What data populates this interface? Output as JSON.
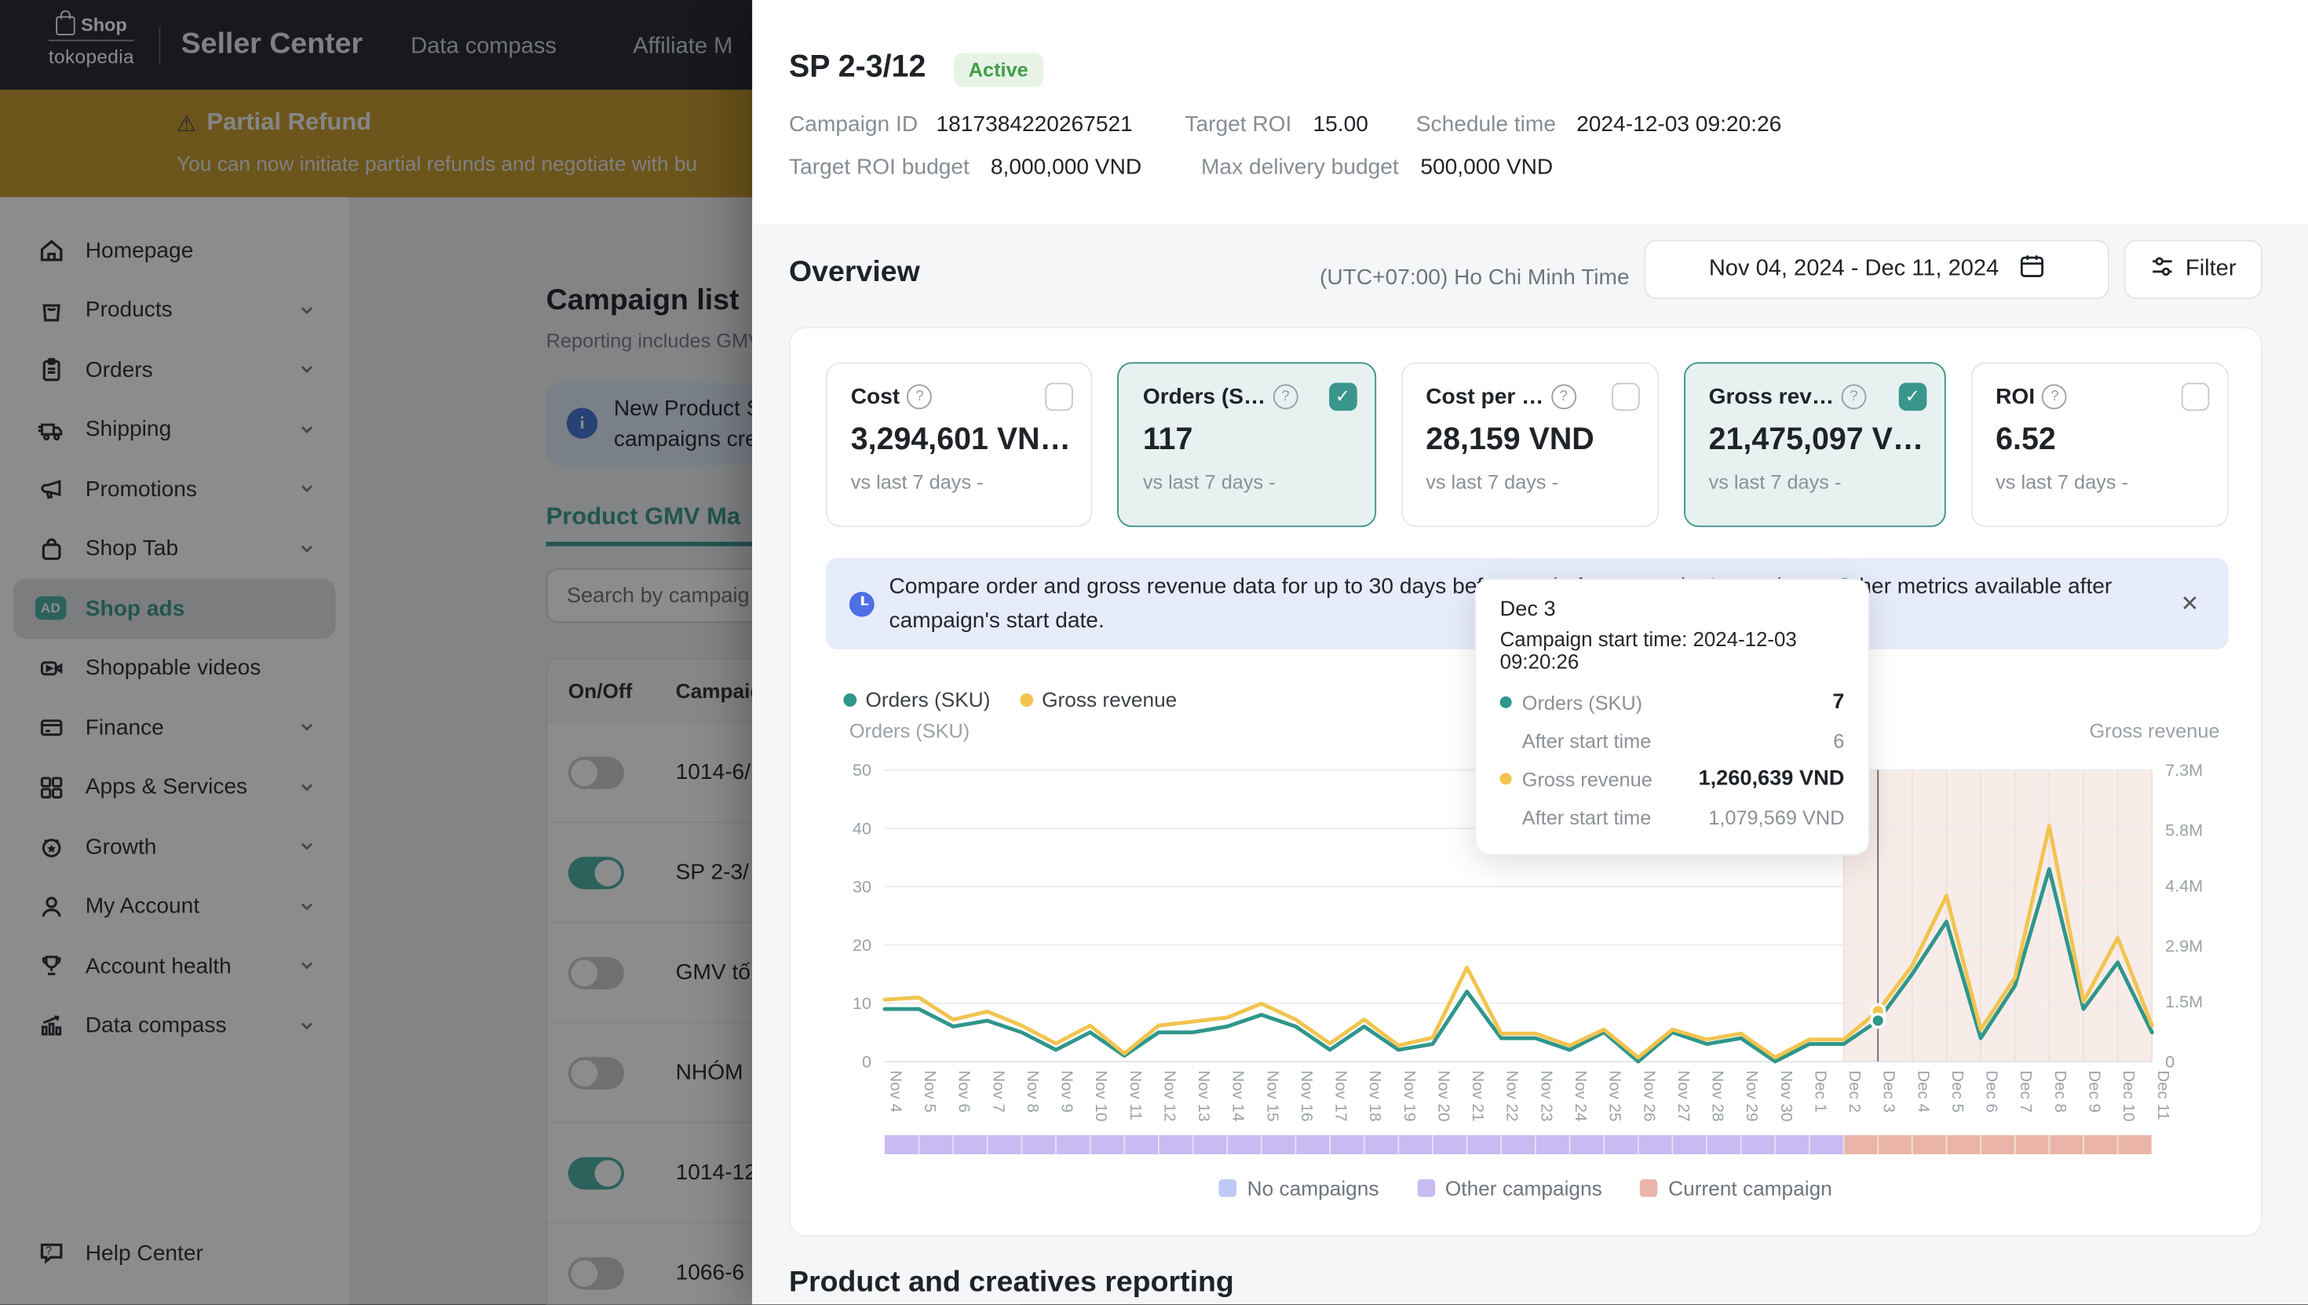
{
  "topnav": {
    "logo": {
      "line1": "Shop",
      "line2": "tokopedia"
    },
    "items": [
      "Seller Center",
      "Data compass",
      "Affiliate M"
    ]
  },
  "promo_banner": {
    "title": "Partial Refund",
    "body": "You can now initiate partial refunds and negotiate with bu"
  },
  "sidebar": {
    "items": [
      {
        "label": "Homepage",
        "icon": "home",
        "expandable": false,
        "active": false
      },
      {
        "label": "Products",
        "icon": "products",
        "expandable": true,
        "active": false
      },
      {
        "label": "Orders",
        "icon": "orders",
        "expandable": true,
        "active": false
      },
      {
        "label": "Shipping",
        "icon": "shipping",
        "expandable": true,
        "active": false
      },
      {
        "label": "Promotions",
        "icon": "promotions",
        "expandable": true,
        "active": false
      },
      {
        "label": "Shop Tab",
        "icon": "shop-tab",
        "expandable": true,
        "active": false
      },
      {
        "label": "Shop ads",
        "icon": "shop-ads",
        "expandable": false,
        "active": true
      },
      {
        "label": "Shoppable videos",
        "icon": "shoppable-videos",
        "expandable": false,
        "active": false
      },
      {
        "label": "Finance",
        "icon": "finance",
        "expandable": true,
        "active": false
      },
      {
        "label": "Apps & Services",
        "icon": "apps-services",
        "expandable": true,
        "active": false
      },
      {
        "label": "Growth",
        "icon": "growth",
        "expandable": true,
        "active": false
      },
      {
        "label": "My Account",
        "icon": "my-account",
        "expandable": true,
        "active": false
      },
      {
        "label": "Account health",
        "icon": "account-health",
        "expandable": true,
        "active": false
      },
      {
        "label": "Data compass",
        "icon": "data-compass",
        "expandable": true,
        "active": false
      }
    ],
    "help_center": "Help Center"
  },
  "campaign_list": {
    "title": "Campaign list",
    "subtitle": "Reporting includes GMV",
    "notice_line1": "New Product S",
    "notice_line2": "campaigns cre",
    "tab_label": "Product GMV Ma",
    "search_placeholder": "Search by campaig",
    "columns": {
      "on_off": "On/Off",
      "campaign": "Campaig"
    },
    "rows": [
      {
        "name": "1014-6/",
        "on": false
      },
      {
        "name": "SP 2-3/",
        "on": true
      },
      {
        "name": "GMV tố",
        "on": false
      },
      {
        "name": "NHÓM",
        "on": false
      },
      {
        "name": "1014-12",
        "on": true
      },
      {
        "name": "1066-6",
        "on": false
      }
    ]
  },
  "panel": {
    "title": "SP 2-3/12",
    "status_badge": "Active",
    "meta": [
      {
        "label": "Campaign ID",
        "value": "1817384220267521"
      },
      {
        "label": "Target ROI",
        "value": "15.00"
      },
      {
        "label": "Schedule time",
        "value": "2024-12-03 09:20:26"
      },
      {
        "label": "Target ROI budget",
        "value": "8,000,000 VND"
      },
      {
        "label": "Max delivery budget",
        "value": "500,000 VND"
      }
    ],
    "overview": {
      "title": "Overview",
      "timezone": "(UTC+07:00) Ho Chi Minh Time",
      "date_range": "Nov 04, 2024  -  Dec 11, 2024",
      "filter_label": "Filter"
    },
    "metrics": [
      {
        "label": "Cost",
        "value": "3,294,601 VN…",
        "compare": "vs last 7 days -",
        "selected": false
      },
      {
        "label": "Orders (S…",
        "value": "117",
        "compare": "vs last 7 days -",
        "selected": true
      },
      {
        "label": "Cost per …",
        "value": "28,159 VND",
        "compare": "vs last 7 days -",
        "selected": false
      },
      {
        "label": "Gross rev…",
        "value": "21,475,097 V…",
        "compare": "vs last 7 days -",
        "selected": true
      },
      {
        "label": "ROI",
        "value": "6.52",
        "compare": "vs last 7 days -",
        "selected": false
      }
    ],
    "notice": "Compare order and gross revenue data for up to 30 days before and after campaign's run dates. Other metrics available after campaign's start date.",
    "notice_close": "✕",
    "tooltip": {
      "title": "Dec 3",
      "subtitle": "Campaign start time: 2024-12-03 09:20:26",
      "rows": [
        {
          "dot": "#2f968b",
          "label": "Orders (SKU)",
          "value": "7",
          "strong": true,
          "indent": false
        },
        {
          "dot": "",
          "label": "After start time",
          "value": "6",
          "strong": false,
          "indent": true
        },
        {
          "dot": "#f2c44f",
          "label": "Gross revenue",
          "value": "1,260,639 VND",
          "strong": true,
          "indent": false
        },
        {
          "dot": "",
          "label": "After start time",
          "value": "1,079,569 VND",
          "strong": false,
          "indent": true
        }
      ]
    },
    "footer_title": "Product and creatives reporting"
  },
  "chart_data": {
    "type": "line",
    "title": "",
    "x": [
      "Nov 4",
      "Nov 5",
      "Nov 6",
      "Nov 7",
      "Nov 8",
      "Nov 9",
      "Nov 10",
      "Nov 11",
      "Nov 12",
      "Nov 13",
      "Nov 14",
      "Nov 15",
      "Nov 16",
      "Nov 17",
      "Nov 18",
      "Nov 19",
      "Nov 20",
      "Nov 21",
      "Nov 22",
      "Nov 23",
      "Nov 24",
      "Nov 25",
      "Nov 26",
      "Nov 27",
      "Nov 28",
      "Nov 29",
      "Nov 30",
      "Dec 1",
      "Dec 2",
      "Dec 3",
      "Dec 4",
      "Dec 5",
      "Dec 6",
      "Dec 7",
      "Dec 8",
      "Dec 9",
      "Dec 10",
      "Dec 11"
    ],
    "series": [
      {
        "name": "Orders (SKU)",
        "axis": "left",
        "color": "#2f968b",
        "values": [
          9,
          9,
          6,
          7,
          5,
          2,
          5,
          1,
          5,
          5,
          6,
          8,
          6,
          2,
          6,
          2,
          3,
          12,
          4,
          4,
          2,
          5,
          0,
          5,
          3,
          4,
          0,
          3,
          3,
          7,
          15,
          24,
          4,
          13,
          33,
          9,
          17,
          5
        ]
      },
      {
        "name": "Gross revenue",
        "axis": "right",
        "color": "#f2c44f",
        "values_millions": [
          1.55,
          1.6,
          1.05,
          1.25,
          0.9,
          0.45,
          0.9,
          0.2,
          0.9,
          1.0,
          1.1,
          1.45,
          1.05,
          0.45,
          1.05,
          0.4,
          0.6,
          2.35,
          0.7,
          0.7,
          0.4,
          0.8,
          0.1,
          0.8,
          0.55,
          0.7,
          0.1,
          0.55,
          0.55,
          1.26,
          2.4,
          4.15,
          0.8,
          2.1,
          5.9,
          1.5,
          3.1,
          0.9
        ]
      }
    ],
    "left_axis": {
      "title": "Orders (SKU)",
      "max": 50,
      "ticks": [
        0,
        10,
        20,
        30,
        40,
        50
      ]
    },
    "right_axis": {
      "title": "Gross revenue",
      "max_millions": 7.3,
      "ticks": [
        {
          "label": "0",
          "value": 0
        },
        {
          "label": "1.5M",
          "value": 1.5
        },
        {
          "label": "2.9M",
          "value": 2.9
        },
        {
          "label": "4.4M",
          "value": 4.4
        },
        {
          "label": "5.8M",
          "value": 5.8
        },
        {
          "label": "7.3M",
          "value": 7.3
        }
      ]
    },
    "marker": {
      "x": "Dec 3",
      "orders": 7,
      "gross_revenue_millions": 1.26
    },
    "current_campaign_region_start": "Dec 2",
    "current_campaign_region_color": "#f8ece9",
    "period_bar": [
      {
        "label": "Other campaigns",
        "from": "Nov 4",
        "to": "Dec 2",
        "color": "#c9baf2"
      },
      {
        "label": "Current campaign",
        "from": "Dec 2",
        "to": "Dec 11",
        "color": "#eab5a8"
      }
    ],
    "bottom_legend": [
      {
        "label": "No campaigns",
        "color": "#bfc9f7"
      },
      {
        "label": "Other campaigns",
        "color": "#c9baf2"
      },
      {
        "label": "Current campaign",
        "color": "#eab5a8"
      }
    ]
  }
}
